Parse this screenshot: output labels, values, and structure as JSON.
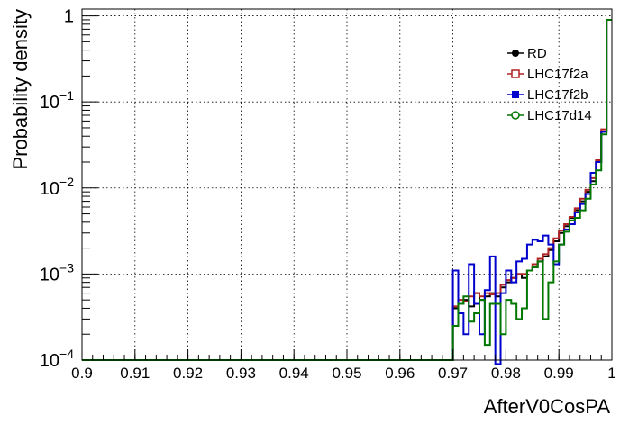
{
  "chart_data": {
    "type": "line",
    "style": "step-histogram",
    "xlabel": "AfterV0CosPA",
    "ylabel": "Probability density",
    "xlim": [
      0.9,
      1.0
    ],
    "ylim": [
      0.0001,
      1.2
    ],
    "yscale": "log",
    "grid": true,
    "legend_position": "top-right",
    "x_ticks": [
      "0.9",
      "0.91",
      "0.92",
      "0.93",
      "0.94",
      "0.95",
      "0.96",
      "0.97",
      "0.98",
      "0.99",
      "1"
    ],
    "y_ticks": [
      {
        "value": 0.0001,
        "base": "10",
        "exp": "−4"
      },
      {
        "value": 0.001,
        "base": "10",
        "exp": "−3"
      },
      {
        "value": 0.01,
        "base": "10",
        "exp": "−2"
      },
      {
        "value": 0.1,
        "base": "10",
        "exp": "−1"
      },
      {
        "value": 1,
        "base": "1",
        "exp": ""
      }
    ],
    "bin_edges": [
      0.9,
      0.97,
      0.971,
      0.972,
      0.973,
      0.974,
      0.975,
      0.976,
      0.977,
      0.978,
      0.979,
      0.98,
      0.981,
      0.982,
      0.983,
      0.984,
      0.985,
      0.986,
      0.987,
      0.988,
      0.989,
      0.99,
      0.991,
      0.992,
      0.993,
      0.994,
      0.995,
      0.996,
      0.997,
      0.998,
      0.999,
      1.0
    ],
    "series": [
      {
        "name": "RD",
        "color": "#000000",
        "marker": "filled-circle",
        "values": [
          0.0001,
          0.0004,
          0.00045,
          0.0005,
          0.00042,
          0.0006,
          0.0005,
          0.00055,
          0.0006,
          0.00055,
          0.0007,
          0.0008,
          0.0009,
          0.001,
          0.0009,
          0.0011,
          0.0012,
          0.0014,
          0.0016,
          0.0019,
          0.0024,
          0.003,
          0.0036,
          0.0045,
          0.0055,
          0.007,
          0.009,
          0.012,
          0.02,
          0.045,
          0.9
        ]
      },
      {
        "name": "LHC17f2a",
        "color": "#b22222",
        "marker": "open-square",
        "values": [
          0.0001,
          0.00042,
          0.0005,
          0.00048,
          0.00055,
          0.0006,
          0.00055,
          0.0006,
          0.00058,
          0.0006,
          0.00075,
          0.00085,
          0.0009,
          0.001,
          0.001,
          0.0011,
          0.0013,
          0.0015,
          0.0017,
          0.002,
          0.0026,
          0.0032,
          0.0038,
          0.0046,
          0.0058,
          0.0075,
          0.0095,
          0.013,
          0.021,
          0.048,
          0.9
        ]
      },
      {
        "name": "LHC17f2b",
        "color": "#0000cc",
        "marker": "filled-square",
        "values": [
          0.0001,
          0.0011,
          0.00035,
          0.0002,
          0.0013,
          0.00045,
          0.0002,
          0.00065,
          0.0016,
          3e-05,
          0.0006,
          0.0011,
          0.0008,
          0.0014,
          0.0015,
          0.0022,
          0.0025,
          0.0024,
          0.0028,
          0.0022,
          0.0013,
          0.0022,
          0.0033,
          0.0038,
          0.0052,
          0.0065,
          0.0085,
          0.015,
          0.02,
          0.045,
          0.9
        ]
      },
      {
        "name": "LHC17d14",
        "color": "#007700",
        "marker": "open-circle",
        "values": [
          0.0001,
          0.00025,
          0.00045,
          0.00055,
          0.00028,
          0.00035,
          0.0005,
          0.00015,
          0.00045,
          0.00045,
          0.0002,
          0.0005,
          0.00045,
          0.0003,
          0.0004,
          0.0011,
          0.0012,
          0.0014,
          0.0003,
          0.0008,
          0.0014,
          0.0022,
          0.0031,
          0.0042,
          0.0045,
          0.0055,
          0.0075,
          0.011,
          0.016,
          0.042,
          0.9
        ]
      }
    ]
  }
}
